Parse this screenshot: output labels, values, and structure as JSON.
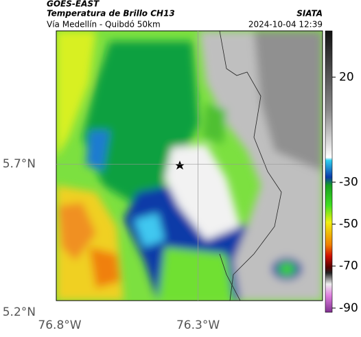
{
  "header": {
    "source": "GOES-EAST",
    "title": "Temperatura de Brillo CH13",
    "subtitle": "Vía Medellín - Quibdó 50km",
    "brand": "SIATA",
    "datetime": "2024-10-04 12:39"
  },
  "map": {
    "lonlim": [
      -76.8,
      -75.85
    ],
    "latlim": [
      5.2,
      6.15
    ],
    "xticks": [
      {
        "value": -76.8,
        "label": "76.8°W"
      },
      {
        "value": -76.3,
        "label": "76.3°W"
      }
    ],
    "yticks": [
      {
        "value": 5.7,
        "label": "5.7°N"
      },
      {
        "value": 5.2,
        "label": "5.2°N"
      }
    ]
  },
  "colorbar": {
    "lim": [
      -92,
      42
    ],
    "ticks": [
      20,
      -30,
      -50,
      -70,
      -90
    ]
  }
}
